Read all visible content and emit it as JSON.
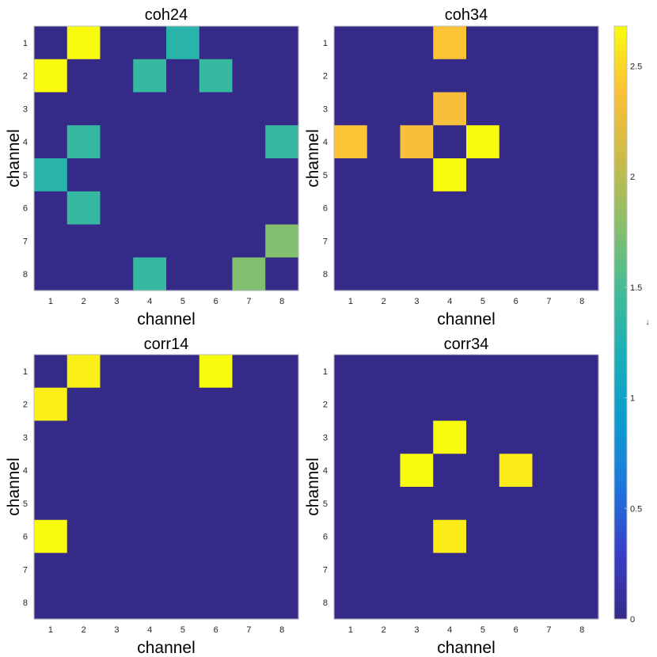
{
  "chart_data": [
    {
      "type": "heatmap",
      "title": "coh24",
      "xlabel": "channel",
      "ylabel": "channel",
      "x_ticks": [
        "1",
        "2",
        "3",
        "4",
        "5",
        "6",
        "7",
        "8"
      ],
      "y_ticks": [
        "1",
        "2",
        "3",
        "4",
        "5",
        "6",
        "7",
        "8"
      ],
      "values": [
        [
          0,
          2.68,
          0,
          0,
          1.3,
          0,
          0,
          0
        ],
        [
          2.68,
          0,
          0,
          1.4,
          0,
          1.4,
          0,
          0
        ],
        [
          0,
          0,
          0,
          0,
          0,
          0,
          0,
          0
        ],
        [
          0,
          1.4,
          0,
          0,
          0,
          0,
          0,
          1.4
        ],
        [
          1.3,
          0,
          0,
          0,
          0,
          0,
          0,
          0
        ],
        [
          0,
          1.4,
          0,
          0,
          0,
          0,
          0,
          0
        ],
        [
          0,
          0,
          0,
          0,
          0,
          0,
          0,
          1.75
        ],
        [
          0,
          0,
          0,
          1.4,
          0,
          0,
          1.75,
          0
        ]
      ]
    },
    {
      "type": "heatmap",
      "title": "coh34",
      "xlabel": "channel",
      "ylabel": "channel",
      "x_ticks": [
        "1",
        "2",
        "3",
        "4",
        "5",
        "6",
        "7",
        "8"
      ],
      "y_ticks": [
        "1",
        "2",
        "3",
        "4",
        "5",
        "6",
        "7",
        "8"
      ],
      "values": [
        [
          0,
          0,
          0,
          2.4,
          0,
          0,
          0,
          0
        ],
        [
          0,
          0,
          0,
          0,
          0,
          0,
          0,
          0
        ],
        [
          0,
          0,
          0,
          2.35,
          0,
          0,
          0,
          0
        ],
        [
          2.4,
          0,
          2.35,
          0,
          2.68,
          0,
          0,
          0
        ],
        [
          0,
          0,
          0,
          2.68,
          0,
          0,
          0,
          0
        ],
        [
          0,
          0,
          0,
          0,
          0,
          0,
          0,
          0
        ],
        [
          0,
          0,
          0,
          0,
          0,
          0,
          0,
          0
        ],
        [
          0,
          0,
          0,
          0,
          0,
          0,
          0,
          0
        ]
      ]
    },
    {
      "type": "heatmap",
      "title": "corr14",
      "xlabel": "channel",
      "ylabel": "channel",
      "x_ticks": [
        "1",
        "2",
        "3",
        "4",
        "5",
        "6",
        "7",
        "8"
      ],
      "y_ticks": [
        "1",
        "2",
        "3",
        "4",
        "5",
        "6",
        "7",
        "8"
      ],
      "values": [
        [
          0,
          2.62,
          0,
          0,
          0,
          2.68,
          0,
          0
        ],
        [
          2.62,
          0,
          0,
          0,
          0,
          0,
          0,
          0
        ],
        [
          0,
          0,
          0,
          0,
          0,
          0,
          0,
          0
        ],
        [
          0,
          0,
          0,
          0,
          0,
          0,
          0,
          0
        ],
        [
          0,
          0,
          0,
          0,
          0,
          0,
          0,
          0
        ],
        [
          2.68,
          0,
          0,
          0,
          0,
          0,
          0,
          0
        ],
        [
          0,
          0,
          0,
          0,
          0,
          0,
          0,
          0
        ],
        [
          0,
          0,
          0,
          0,
          0,
          0,
          0,
          0
        ]
      ]
    },
    {
      "type": "heatmap",
      "title": "corr34",
      "xlabel": "channel",
      "ylabel": "channel",
      "x_ticks": [
        "1",
        "2",
        "3",
        "4",
        "5",
        "6",
        "7",
        "8"
      ],
      "y_ticks": [
        "1",
        "2",
        "3",
        "4",
        "5",
        "6",
        "7",
        "8"
      ],
      "values": [
        [
          0,
          0,
          0,
          0,
          0,
          0,
          0,
          0
        ],
        [
          0,
          0,
          0,
          0,
          0,
          0,
          0,
          0
        ],
        [
          0,
          0,
          0,
          2.68,
          0,
          0,
          0,
          0
        ],
        [
          0,
          0,
          2.68,
          0,
          0,
          2.6,
          0,
          0
        ],
        [
          0,
          0,
          0,
          0,
          0,
          0,
          0,
          0
        ],
        [
          0,
          0,
          0,
          2.6,
          0,
          0,
          0,
          0
        ],
        [
          0,
          0,
          0,
          0,
          0,
          0,
          0,
          0
        ],
        [
          0,
          0,
          0,
          0,
          0,
          0,
          0,
          0
        ]
      ]
    }
  ],
  "colorbar": {
    "colormap": "parula",
    "range": [
      0,
      2.68
    ],
    "ticks": [
      "0",
      "0.5",
      "1",
      "1.5",
      "2",
      "2.5"
    ],
    "tick_values": [
      0,
      0.5,
      1,
      1.5,
      2,
      2.5
    ],
    "side_mark": "↓",
    "colors": [
      "#352a87",
      "#3a3ec8",
      "#1d77dd",
      "#0d9ccf",
      "#1aafb7",
      "#43bc96",
      "#8bbf6a",
      "#cbbb47",
      "#fcc038",
      "#f9fb0e"
    ]
  },
  "grid": false,
  "legend": "none"
}
